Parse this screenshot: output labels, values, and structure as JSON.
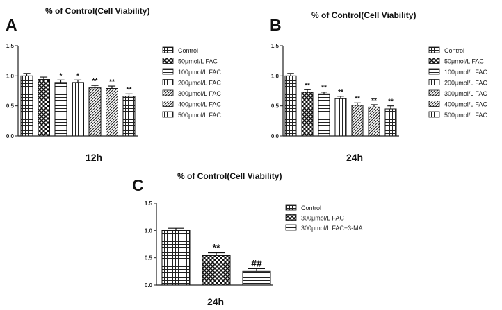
{
  "chart_data": [
    {
      "type": "bar",
      "panel_label": "A",
      "title": "% of Control(Cell Viability)",
      "xlabel": "12h",
      "ylabel": "",
      "ylim": [
        0,
        1.5
      ],
      "yticks": [
        "0.0",
        "0.5",
        "1.0",
        "1.5"
      ],
      "categories": [
        "Control",
        "50μmol/L FAC",
        "100μmol/L FAC",
        "200μmol/L FAC",
        "300μmol/L FAC",
        "400μmol/L FAC",
        "500μmol/L FAC"
      ],
      "values": [
        1.0,
        0.94,
        0.89,
        0.89,
        0.8,
        0.79,
        0.66
      ],
      "errors": [
        0.04,
        0.04,
        0.04,
        0.04,
        0.04,
        0.04,
        0.04
      ],
      "annotations": [
        "",
        "",
        "*",
        "*",
        "**",
        "**",
        "**"
      ],
      "patterns": [
        "grid",
        "checker",
        "hlines",
        "vlines",
        "diag",
        "diag",
        "grid"
      ],
      "legend_position": "right"
    },
    {
      "type": "bar",
      "panel_label": "B",
      "title": "% of Control(Cell Viability)",
      "xlabel": "24h",
      "ylabel": "",
      "ylim": [
        0,
        1.5
      ],
      "yticks": [
        "0.0",
        "0.5",
        "1.0",
        "1.5"
      ],
      "categories": [
        "Control",
        "50μmol/L FAC",
        "100μmol/L FAC",
        "200μmol/L FAC",
        "300μmol/L FAC",
        "400μmol/L FAC",
        "500μmol/L FAC"
      ],
      "values": [
        1.0,
        0.73,
        0.7,
        0.62,
        0.51,
        0.48,
        0.45
      ],
      "errors": [
        0.04,
        0.04,
        0.03,
        0.04,
        0.04,
        0.04,
        0.05
      ],
      "annotations": [
        "",
        "**",
        "**",
        "**",
        "**",
        "**",
        "**"
      ],
      "patterns": [
        "grid",
        "checker",
        "hlines",
        "vlines",
        "diag",
        "diag",
        "grid"
      ],
      "legend_position": "right"
    },
    {
      "type": "bar",
      "panel_label": "C",
      "title": "% of Control(Cell Viability)",
      "xlabel": "24h",
      "ylabel": "",
      "ylim": [
        0,
        1.5
      ],
      "yticks": [
        "0.0",
        "0.5",
        "1.0",
        "1.5"
      ],
      "categories": [
        "Control",
        "300μmol/L FAC",
        "300μmol/L FAC+3-MA"
      ],
      "values": [
        1.0,
        0.54,
        0.25
      ],
      "errors": [
        0.04,
        0.05,
        0.05
      ],
      "annotations": [
        "",
        "**",
        "##"
      ],
      "patterns": [
        "grid",
        "checker",
        "hlines"
      ],
      "legend_position": "right"
    }
  ]
}
